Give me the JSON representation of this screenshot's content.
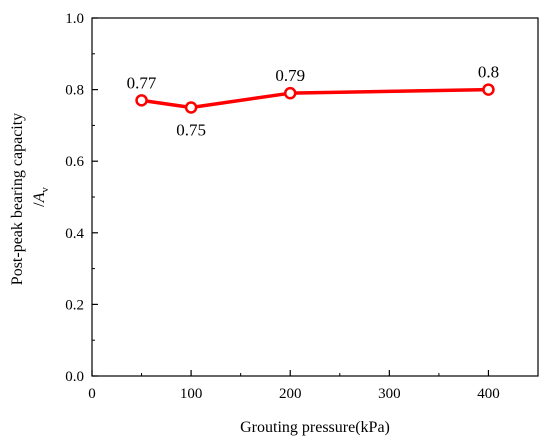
{
  "chart_data": {
    "type": "line",
    "title": "",
    "xlabel": "Grouting pressure(kPa)",
    "ylabel_line1": "Post-peak bearing capacity",
    "ylabel_line2_prefix": "/",
    "ylabel_line2_symbol": "A",
    "ylabel_line2_subscript": "v",
    "xlim": [
      0,
      450
    ],
    "ylim": [
      0.0,
      1.0
    ],
    "xticks": [
      "0",
      "100",
      "200",
      "300",
      "400"
    ],
    "yticks": [
      "0.0",
      "0.2",
      "0.4",
      "0.6",
      "0.8",
      "1.0"
    ],
    "grid": false,
    "legend": "none",
    "series": [
      {
        "x": [
          50,
          100,
          200,
          400
        ],
        "y": [
          0.77,
          0.75,
          0.79,
          0.8
        ],
        "labels": [
          "0.77",
          "0.75",
          "0.79",
          "0.8"
        ],
        "label_position": [
          "above",
          "below",
          "above",
          "above"
        ],
        "color": "#ff0000",
        "marker": "open-circle"
      }
    ]
  }
}
